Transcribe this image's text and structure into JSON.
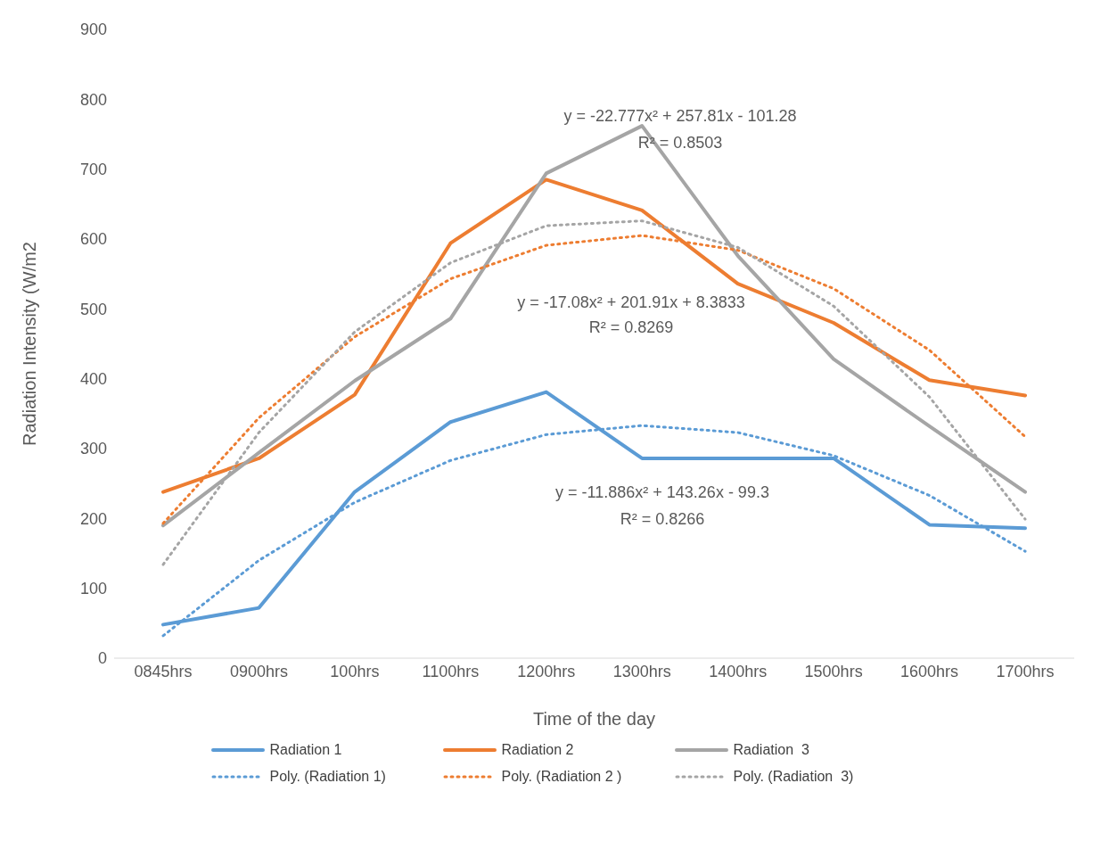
{
  "chart_data": {
    "type": "line",
    "xlabel": "Time of the day",
    "ylabel": "Radiation Intensity (W/m2",
    "categories": [
      "0845hrs",
      "0900hrs",
      "100hrs",
      "1100hrs",
      "1200hrs",
      "1300hrs",
      "1400hrs",
      "1500hrs",
      "1600hrs",
      "1700hrs"
    ],
    "series": [
      {
        "name": "Radiation 1",
        "color": "#5b9bd5",
        "line_style": "solid",
        "values": [
          48,
          72,
          238,
          338,
          381,
          286,
          286,
          286,
          191,
          186
        ]
      },
      {
        "name": "Radiation 2",
        "color": "#ed7d31",
        "line_style": "solid",
        "values": [
          238,
          286,
          377,
          594,
          685,
          641,
          536,
          480,
          398,
          376
        ]
      },
      {
        "name": "Radiation  3",
        "color": "#a5a5a5",
        "line_style": "solid",
        "values": [
          190,
          294,
          397,
          486,
          694,
          762,
          576,
          428,
          332,
          238
        ]
      },
      {
        "name": "Poly. (Radiation 1)",
        "color": "#5b9bd5",
        "line_style": "dotted",
        "values": [
          32,
          140,
          223,
          283,
          320,
          333,
          323,
          290,
          233,
          153
        ]
      },
      {
        "name": "Poly. (Radiation 2 )",
        "color": "#ed7d31",
        "line_style": "dotted",
        "values": [
          193,
          344,
          460,
          543,
          591,
          605,
          584,
          529,
          441,
          317
        ]
      },
      {
        "name": "Poly. (Radiation  3)",
        "color": "#a5a5a5",
        "line_style": "dotted",
        "values": [
          134,
          323,
          467,
          566,
          619,
          626,
          588,
          504,
          374,
          199
        ]
      }
    ],
    "ylim": [
      0,
      900
    ],
    "yticks": [
      0,
      100,
      200,
      300,
      400,
      500,
      600,
      700,
      800,
      900
    ],
    "grid": false,
    "legend": "bottom",
    "marker": "none",
    "annotations": [
      "y = -22.777x² + 257.81x - 101.28",
      "R² = 0.8503",
      "y = -17.08x² + 201.91x + 8.3833",
      "R² = 0.8269",
      "y = -11.886x² + 143.26x - 99.3",
      "R² = 0.8266"
    ]
  }
}
